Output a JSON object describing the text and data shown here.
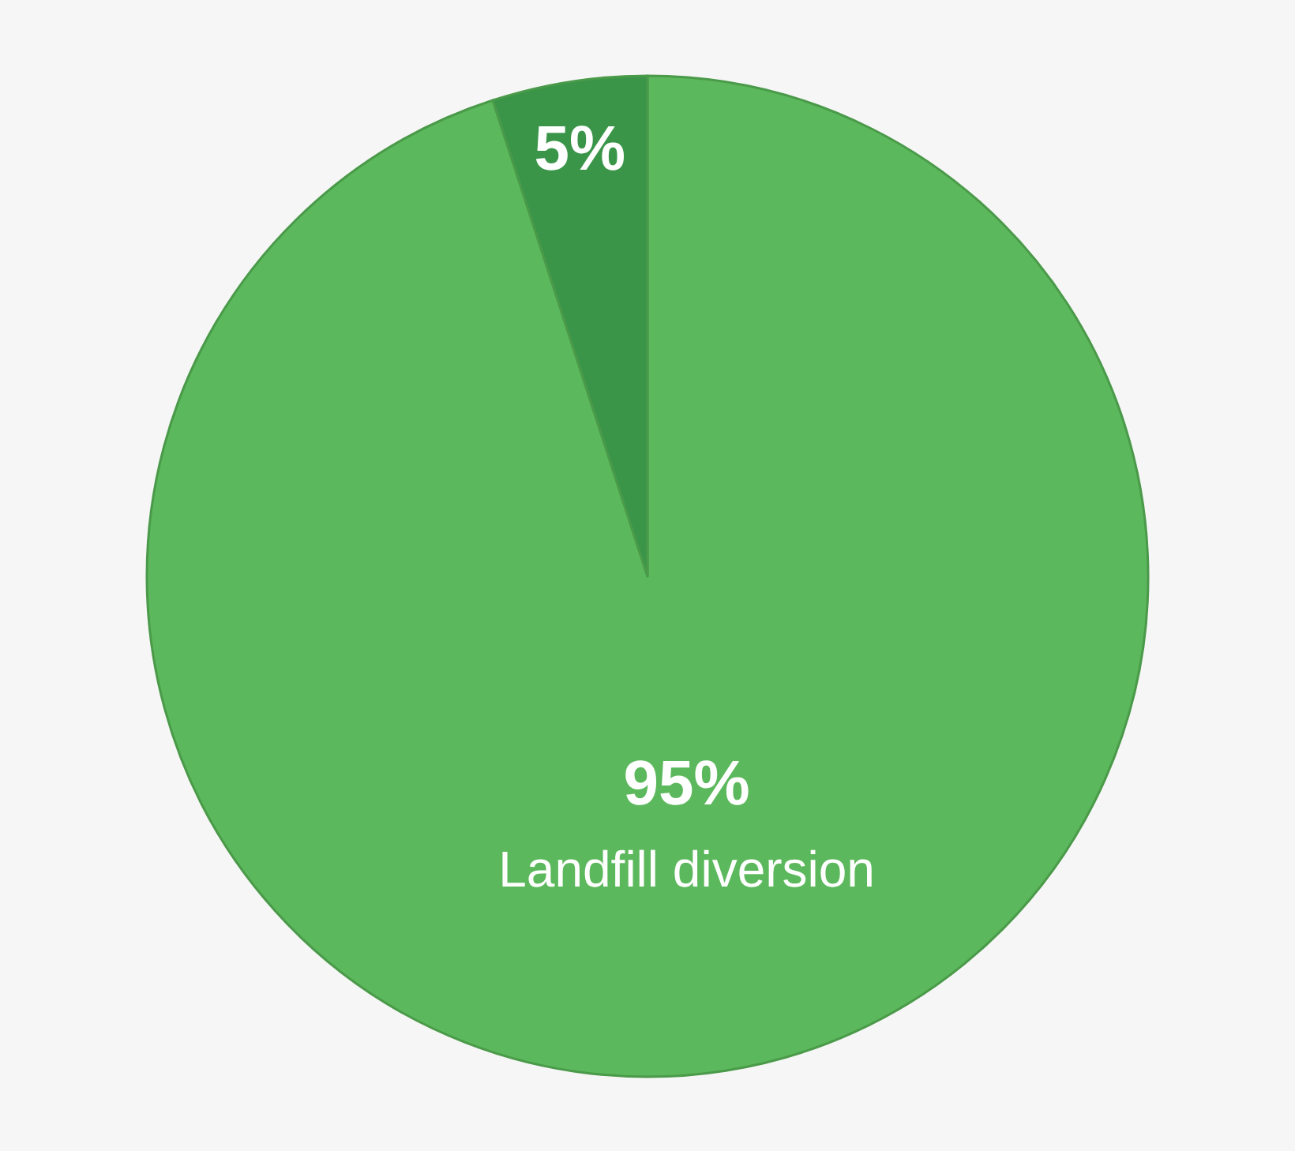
{
  "chart_data": {
    "type": "pie",
    "categories": [
      "Landfill diversion",
      null
    ],
    "values": [
      95,
      5
    ],
    "colors": [
      "#5cb85c",
      "#3a9549"
    ],
    "value_labels": [
      "95%",
      "5%"
    ],
    "legend": false
  }
}
